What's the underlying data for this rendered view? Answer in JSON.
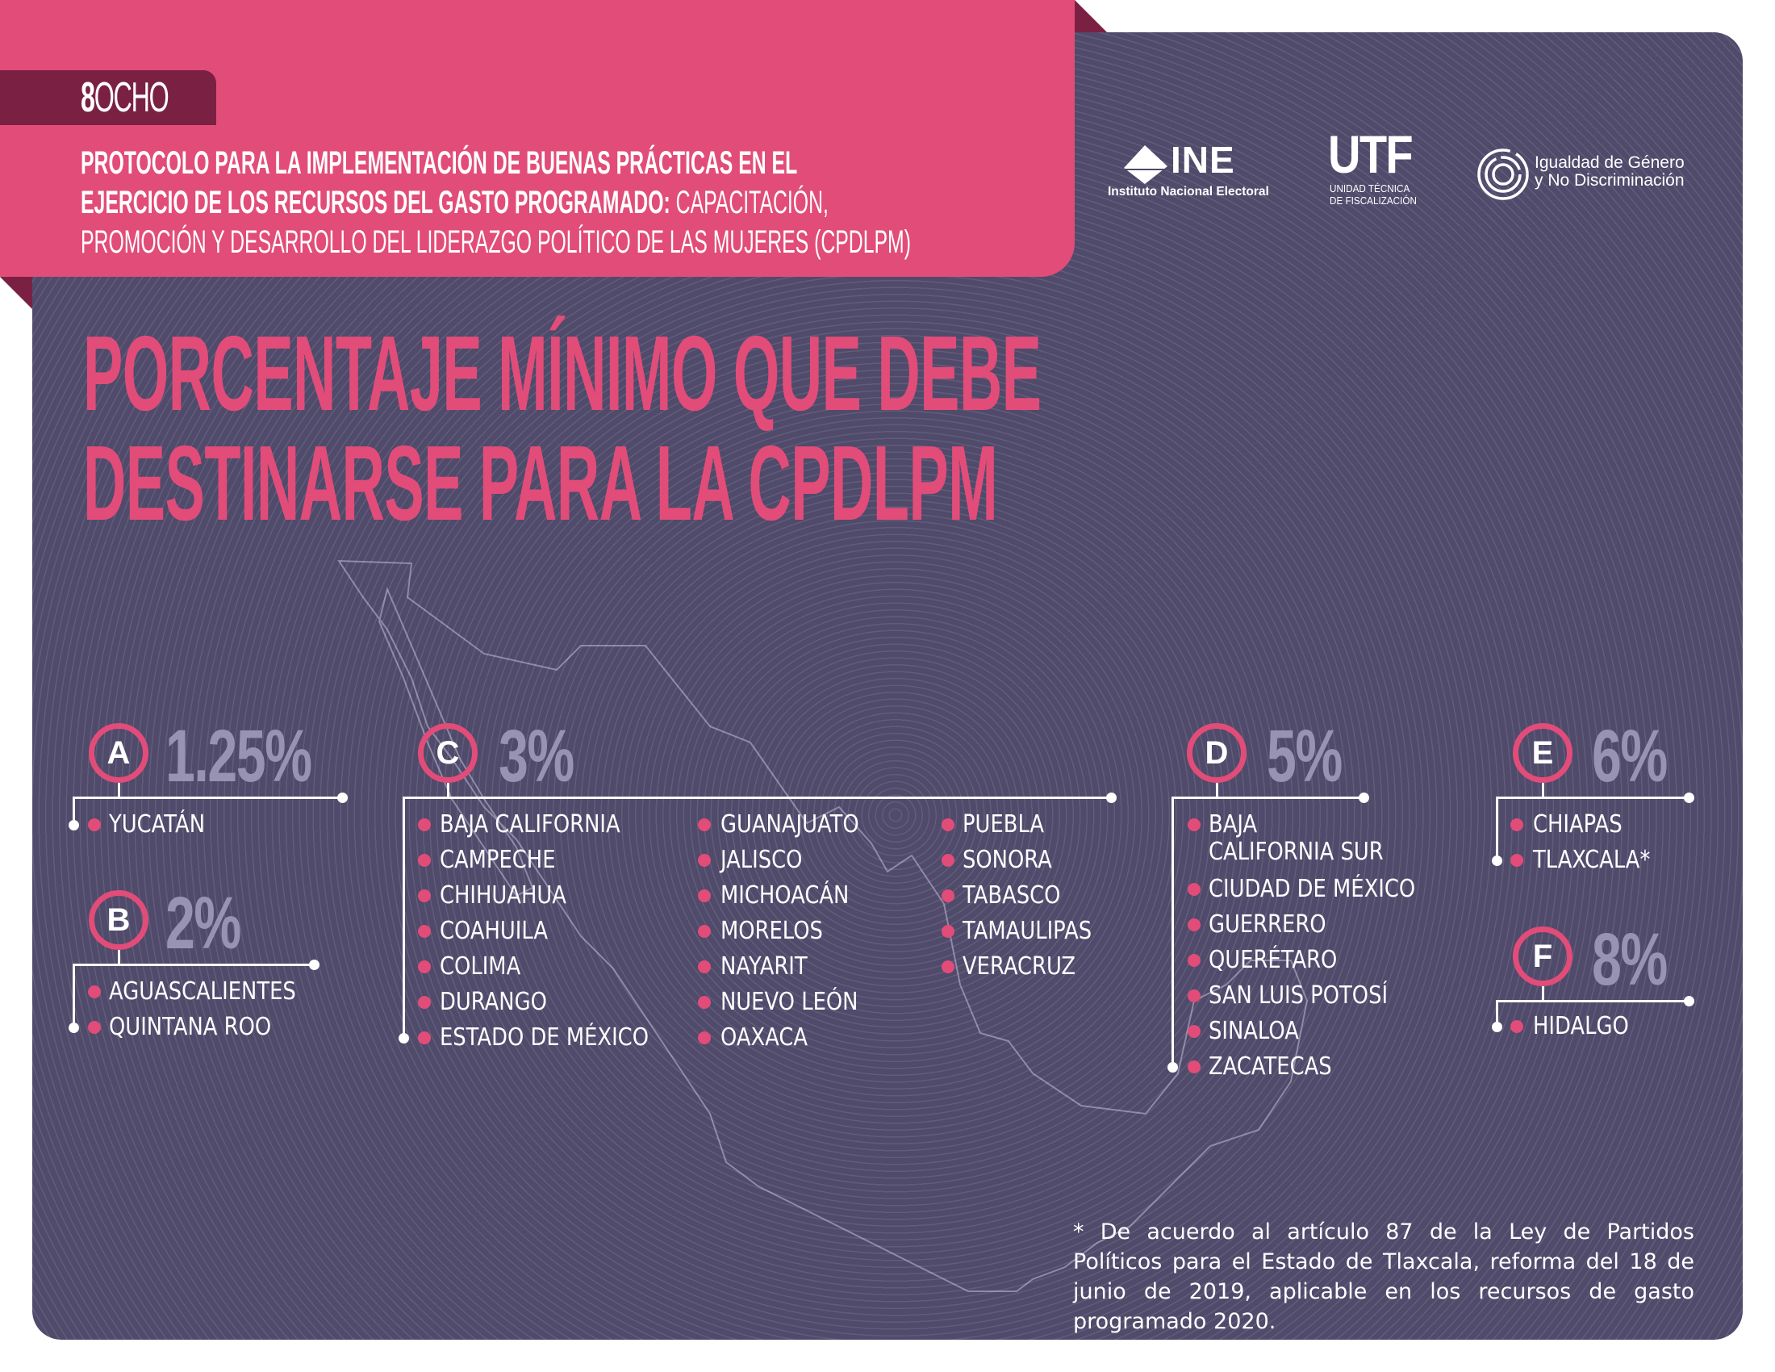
{
  "header": {
    "tab_number": "8",
    "tab_word": "OCHO",
    "title_bold_1": "PROTOCOLO PARA LA IMPLEMENTACIÓN DE BUENAS PRÁCTICAS EN EL",
    "title_bold_2": "EJERCICIO DE LOS RECURSOS DEL GASTO PROGRAMADO:",
    "title_regular_2": " CAPACITACIÓN,",
    "title_regular_3": "PROMOCIÓN Y DESARROLLO DEL LIDERAZGO POLÍTICO DE LAS MUJERES (CPDLPM)"
  },
  "logos": {
    "ine": {
      "word": "INE",
      "subtitle": "Instituto Nacional Electoral"
    },
    "utf": {
      "word": "UTF",
      "subtitle_1": "UNIDAD TÉCNICA",
      "subtitle_2": "DE FISCALIZACIÓN"
    },
    "igualdad": {
      "line_1": "Igualdad de Género",
      "line_2": "y No Discriminación"
    }
  },
  "main_title": {
    "line_1": "PORCENTAJE MÍNIMO QUE DEBE",
    "line_2": "DESTINARSE PARA LA CPDLPM"
  },
  "groups": [
    {
      "letter": "A",
      "percent": "1.25%",
      "states": [
        "YUCATÁN"
      ]
    },
    {
      "letter": "B",
      "percent": "2%",
      "states": [
        "AGUASCALIENTES",
        "QUINTANA ROO"
      ]
    },
    {
      "letter": "C",
      "percent": "3%",
      "states": [
        "BAJA CALIFORNIA",
        "CAMPECHE",
        "CHIHUAHUA",
        "COAHUILA",
        "COLIMA",
        "DURANGO",
        "ESTADO DE MÉXICO",
        "GUANAJUATO",
        "JALISCO",
        "MICHOACÁN",
        "MORELOS",
        "NAYARIT",
        "NUEVO LEÓN",
        "OAXACA",
        "PUEBLA",
        "SONORA",
        "TABASCO",
        "TAMAULIPAS",
        "VERACRUZ"
      ]
    },
    {
      "letter": "D",
      "percent": "5%",
      "states": [
        "BAJA CALIFORNIA SUR",
        "CIUDAD DE MÉXICO",
        "GUERRERO",
        "QUERÉTARO",
        "SAN LUIS POTOSÍ",
        "SINALOA",
        "ZACATECAS"
      ]
    },
    {
      "letter": "E",
      "percent": "6%",
      "states": [
        "CHIAPAS",
        "TLAXCALA*"
      ]
    },
    {
      "letter": "F",
      "percent": "8%",
      "states": [
        "HIDALGO"
      ]
    }
  ],
  "d_first_item_lines": [
    "BAJA",
    "CALIFORNIA SUR"
  ],
  "footnote": "* De acuerdo al artículo 87 de la Ley de Partidos Políticos para el Estado de Tlaxcala, reforma del 18 de junio de 2019, aplicable en los recursos de gasto programado 2020.",
  "colors": {
    "pink": "#e24c79",
    "wine": "#7a2143",
    "panel": "#504a6b",
    "percent_gray": "#9893b3",
    "white": "#ffffff"
  }
}
